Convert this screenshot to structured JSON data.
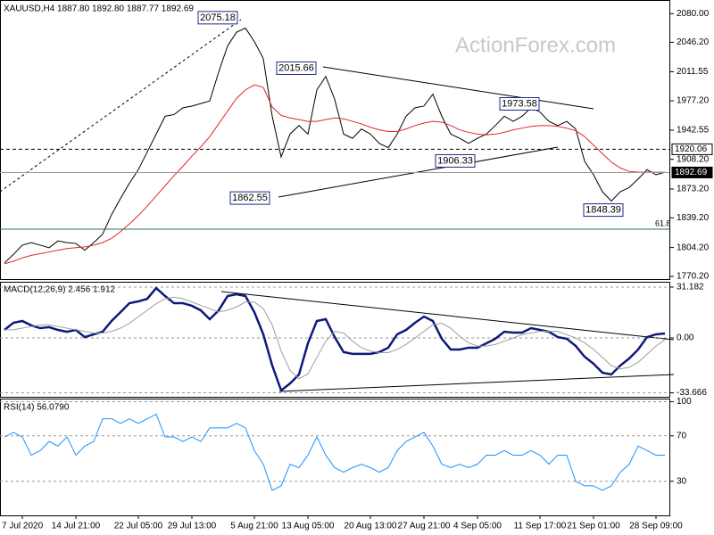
{
  "chart_data": [
    {
      "type": "line",
      "title": "XAUUSD,H4  1887.80 1892.80 1887.77 1892.69",
      "watermark": "ActionForex.com",
      "categories": [
        null,
        null,
        "7 Jul 2020",
        null,
        null,
        null,
        null,
        null,
        "14 Jul 21:00",
        null,
        null,
        null,
        null,
        null,
        null,
        "22 Jul 05:00",
        null,
        null,
        null,
        null,
        null,
        "29 Jul 13:00",
        null,
        null,
        null,
        null,
        null,
        null,
        "5 Aug 21:00",
        null,
        null,
        null,
        null,
        null,
        "13 Aug 05:00",
        null,
        null,
        null,
        null,
        null,
        null,
        "20 Aug 13:00",
        null,
        null,
        null,
        null,
        null,
        "27 Aug 21:00",
        null,
        null,
        null,
        null,
        null,
        "4 Sep 05:00",
        null,
        null,
        null,
        null,
        null,
        null,
        "11 Sep 17:00",
        null,
        null,
        null,
        null,
        null,
        "21 Sep 01:00",
        null,
        null,
        null,
        null,
        null,
        null,
        "28 Sep 09:00",
        null
      ],
      "series": [
        {
          "color": "#000000",
          "values": [
            1786,
            1796,
            1807,
            1810,
            1807,
            1804,
            1812,
            1810,
            1809,
            1801,
            1810,
            1820,
            1843,
            1862,
            1880,
            1896,
            1917,
            1938,
            1959,
            1961,
            1969,
            1971,
            1974,
            1977,
            2011,
            2042,
            2058,
            2063,
            2047,
            2027,
            1959,
            1911,
            1938,
            1948,
            1938,
            1990,
            2006,
            1979,
            1938,
            1933,
            1944,
            1938,
            1927,
            1922,
            1938,
            1959,
            1969,
            1971,
            1985,
            1959,
            1938,
            1933,
            1927,
            1933,
            1938,
            1948,
            1959,
            1953,
            1959,
            1969,
            1964,
            1953,
            1948,
            1953,
            1944,
            1906,
            1890,
            1870,
            1859,
            1870,
            1875,
            1885,
            1896,
            1890,
            1893
          ]
        },
        {
          "color": "#e0262b",
          "values": [
            1785,
            1788,
            1792,
            1795,
            1797,
            1799,
            1801,
            1803,
            1804,
            1805,
            1807,
            1810,
            1815,
            1823,
            1832,
            1842,
            1853,
            1865,
            1877,
            1889,
            1900,
            1912,
            1923,
            1935,
            1950,
            1965,
            1980,
            1990,
            1996,
            1993,
            1970,
            1960,
            1957,
            1955,
            1953,
            1953,
            1955,
            1957,
            1956,
            1953,
            1950,
            1946,
            1943,
            1941,
            1941,
            1944,
            1948,
            1951,
            1953,
            1952,
            1948,
            1943,
            1940,
            1938,
            1937,
            1938,
            1940,
            1943,
            1945,
            1947,
            1948,
            1948,
            1947,
            1945,
            1942,
            1935,
            1925,
            1915,
            1905,
            1898,
            1894,
            1893,
            1893,
            1893,
            1893
          ]
        }
      ],
      "ylim": [
        1767,
        2095
      ],
      "yticks": [
        {
          "value": 2080,
          "label": "2080.00"
        },
        {
          "value": 2046.2,
          "label": "2046.20"
        },
        2011.55,
        {
          "value": 1977.2,
          "label": "1977.20"
        },
        1942.55,
        {
          "value": 1908.2,
          "label": "1908.20"
        },
        {
          "value": 1873.2,
          "label": "1873.20"
        },
        {
          "value": 1839.2,
          "label": "1839.20"
        },
        {
          "value": 1804.2,
          "label": "1804.20"
        },
        {
          "value": 1770.2,
          "label": "1770.20"
        }
      ],
      "grid": false,
      "annotations": [
        2075.18,
        2015.66,
        1973.58,
        1906.33,
        1862.55,
        1848.39
      ],
      "price_lines": [
        1920.06,
        1892.69
      ],
      "fib_level": 61.8
    },
    {
      "type": "line",
      "title": "MACD(12,26,9) 2.456 1.912",
      "series": [
        {
          "color": "#0d1a7a",
          "values": [
            4.9,
            9.3,
            10.4,
            7.7,
            6.0,
            6.6,
            4.9,
            3.8,
            4.9,
            0.5,
            2.2,
            3.8,
            10.4,
            15.8,
            21.3,
            22.4,
            24.0,
            30.6,
            25.7,
            21.3,
            21.3,
            19.7,
            16.9,
            11.5,
            16.9,
            25.7,
            26.8,
            25.7,
            15.8,
            2.2,
            -16.9,
            -32.2,
            -27.9,
            -22.4,
            -3.3,
            10.4,
            11.5,
            0.5,
            -8.7,
            -9.8,
            -9.8,
            -9.8,
            -8.7,
            -6.0,
            2.2,
            4.9,
            9.3,
            13.1,
            10.4,
            -0.5,
            -7.1,
            -7.1,
            -6.0,
            -6.0,
            -3.3,
            -0.5,
            3.8,
            3.3,
            3.3,
            6.0,
            4.9,
            3.8,
            0.5,
            -0.5,
            -4.9,
            -11.5,
            -15.8,
            -21.3,
            -22.4,
            -16.9,
            -12.6,
            -7.1,
            0.5,
            2.2,
            2.7
          ]
        },
        {
          "color": "#9e9e9e",
          "values": [
            5,
            5,
            6,
            7,
            8,
            8,
            7,
            6,
            5,
            4,
            3,
            3,
            4,
            6,
            9,
            13,
            17,
            21,
            24,
            25,
            24,
            22,
            20,
            18,
            16,
            17,
            19,
            22,
            22,
            18,
            8,
            -8,
            -20,
            -25,
            -22,
            -12,
            -2,
            4,
            3,
            -2,
            -6,
            -8,
            -9,
            -9,
            -7,
            -4,
            0,
            4,
            8,
            9,
            6,
            1,
            -3,
            -5,
            -5,
            -4,
            -2,
            0,
            2,
            3,
            4,
            4,
            4,
            2,
            0,
            -3,
            -7,
            -12,
            -17,
            -19,
            -18,
            -15,
            -10,
            -5,
            -1
          ]
        }
      ],
      "ylim": [
        -36.1,
        33.9
      ],
      "yticks": [
        31.182,
        {
          "value": 0,
          "label": "0.00"
        },
        -33.666
      ],
      "grid": true
    },
    {
      "type": "line",
      "title": "RSI(14) 56.0790",
      "series": [
        {
          "color": "#1e90ff",
          "values": [
            69,
            73,
            69,
            53,
            57,
            65,
            61,
            69,
            53,
            61,
            65,
            85,
            85,
            81,
            85,
            81,
            85,
            89,
            69,
            69,
            65,
            69,
            65,
            77,
            77,
            77,
            81,
            77,
            57,
            45,
            22,
            26,
            45,
            42,
            53,
            69,
            53,
            42,
            38,
            42,
            45,
            42,
            38,
            42,
            57,
            65,
            69,
            73,
            61,
            45,
            42,
            45,
            42,
            45,
            53,
            53,
            57,
            53,
            53,
            57,
            53,
            45,
            53,
            53,
            30,
            26,
            26,
            22,
            26,
            38,
            45,
            61,
            57,
            53,
            53
          ]
        }
      ],
      "ylim": [
        0,
        102
      ],
      "yticks": [
        100,
        70,
        30
      ],
      "grid": true
    }
  ]
}
